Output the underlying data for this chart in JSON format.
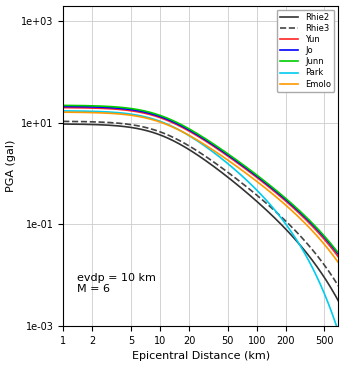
{
  "M": 6.0,
  "evdp": 10.0,
  "dist_min": 1.0,
  "dist_max": 700.0,
  "n_points": 500,
  "ylim": [
    0.001,
    2000
  ],
  "xlim": [
    1,
    700
  ],
  "xlabel": "Epicentral Distance (km)",
  "ylabel": "PGA (gal)",
  "annotation": "evdp = 10 km\nM = 6",
  "background_color": "#ffffff",
  "grid_color": "#cccccc",
  "lines": [
    {
      "name": "Rhie2",
      "color": "#333333",
      "lw": 1.2,
      "ls": "-"
    },
    {
      "name": "Rhie3",
      "color": "#444444",
      "lw": 1.2,
      "ls": "--"
    },
    {
      "name": "Yun",
      "color": "#ff2222",
      "lw": 1.2,
      "ls": "-"
    },
    {
      "name": "Jo",
      "color": "#0000ff",
      "lw": 1.2,
      "ls": "-"
    },
    {
      "name": "Junn",
      "color": "#00cc00",
      "lw": 1.2,
      "ls": "-"
    },
    {
      "name": "Park",
      "color": "#00ccee",
      "lw": 1.2,
      "ls": "-"
    },
    {
      "name": "Emolo",
      "color": "#ff9900",
      "lw": 1.2,
      "ls": "-"
    }
  ],
  "xticks": [
    1,
    2,
    5,
    10,
    20,
    50,
    100,
    200,
    500
  ],
  "ytick_values": [
    0.001,
    0.1,
    10,
    1000
  ]
}
